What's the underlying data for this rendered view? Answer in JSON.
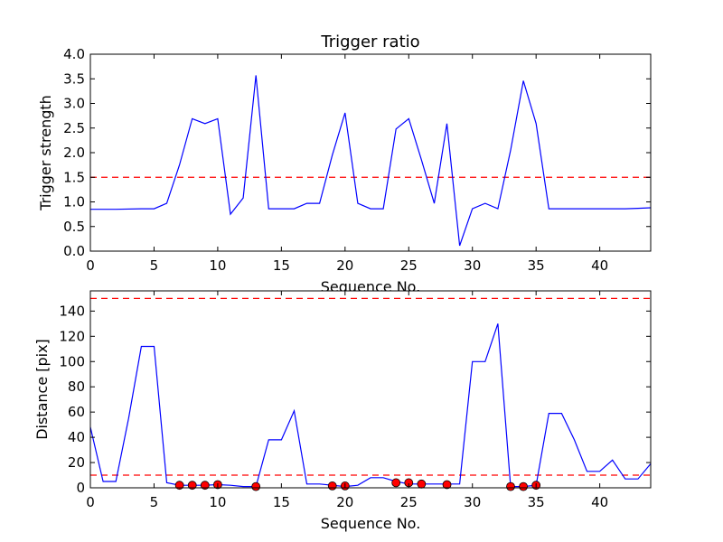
{
  "chart_data": [
    {
      "type": "line",
      "title": "Trigger ratio",
      "xlabel": "Sequence No.",
      "ylabel": "Trigger strength",
      "xlim": [
        0,
        44
      ],
      "ylim": [
        0,
        4
      ],
      "xticks": [
        0,
        5,
        10,
        15,
        20,
        25,
        30,
        35,
        40
      ],
      "yticks": [
        "0.0",
        "0.5",
        "1.0",
        "1.5",
        "2.0",
        "2.5",
        "3.0",
        "3.5",
        "4.0"
      ],
      "grid": false,
      "series": [
        {
          "color": "#0000ff",
          "points": [
            [
              0,
              0.85
            ],
            [
              2,
              0.85
            ],
            [
              4,
              0.86
            ],
            [
              5,
              0.86
            ],
            [
              6,
              0.97
            ],
            [
              7,
              1.75
            ],
            [
              8,
              2.69
            ],
            [
              9,
              2.59
            ],
            [
              10,
              2.69
            ],
            [
              11,
              0.75
            ],
            [
              12,
              1.08
            ],
            [
              13,
              3.57
            ],
            [
              14,
              0.86
            ],
            [
              15,
              0.86
            ],
            [
              16,
              0.86
            ],
            [
              17,
              0.97
            ],
            [
              18,
              0.97
            ],
            [
              19,
              1.95
            ],
            [
              20,
              2.81
            ],
            [
              21,
              0.97
            ],
            [
              22,
              0.86
            ],
            [
              23,
              0.86
            ],
            [
              24,
              2.48
            ],
            [
              25,
              2.69
            ],
            [
              26,
              1.85
            ],
            [
              27,
              0.97
            ],
            [
              28,
              2.59
            ],
            [
              29,
              0.11
            ],
            [
              30,
              0.86
            ],
            [
              31,
              0.97
            ],
            [
              32,
              0.86
            ],
            [
              33,
              2.05
            ],
            [
              34,
              3.46
            ],
            [
              35,
              2.59
            ],
            [
              36,
              0.86
            ],
            [
              37,
              0.86
            ],
            [
              38,
              0.86
            ],
            [
              39,
              0.86
            ],
            [
              40,
              0.86
            ],
            [
              41,
              0.86
            ],
            [
              42,
              0.86
            ],
            [
              43,
              0.87
            ],
            [
              44,
              0.88
            ]
          ]
        }
      ],
      "hlines": [
        {
          "y": 1.5,
          "color": "#ff0000",
          "style": "dashed"
        }
      ]
    },
    {
      "type": "line",
      "title": "",
      "xlabel": "Sequence No.",
      "ylabel": "Distance [pix]",
      "xlim": [
        0,
        44
      ],
      "ylim": [
        0,
        156
      ],
      "xticks": [
        0,
        5,
        10,
        15,
        20,
        25,
        30,
        35,
        40
      ],
      "yticks": [
        "0",
        "20",
        "40",
        "60",
        "80",
        "100",
        "120",
        "140"
      ],
      "grid": false,
      "series": [
        {
          "color": "#0000ff",
          "points": [
            [
              0,
              48
            ],
            [
              1,
              5
            ],
            [
              2,
              5
            ],
            [
              3,
              55
            ],
            [
              4,
              112
            ],
            [
              5,
              112
            ],
            [
              6,
              4
            ],
            [
              7,
              2
            ],
            [
              8,
              2
            ],
            [
              9,
              2
            ],
            [
              10,
              2.5
            ],
            [
              11,
              2
            ],
            [
              12,
              1
            ],
            [
              13,
              1
            ],
            [
              14,
              38
            ],
            [
              15,
              38
            ],
            [
              16,
              61
            ],
            [
              17,
              3
            ],
            [
              18,
              3
            ],
            [
              19,
              2
            ],
            [
              20,
              1
            ],
            [
              21,
              2
            ],
            [
              22,
              8
            ],
            [
              23,
              8
            ],
            [
              24,
              5
            ],
            [
              25,
              3
            ],
            [
              26,
              3
            ],
            [
              27,
              3
            ],
            [
              28,
              3
            ],
            [
              29,
              3
            ],
            [
              30,
              100
            ],
            [
              31,
              100
            ],
            [
              32,
              130
            ],
            [
              33,
              1
            ],
            [
              34,
              1
            ],
            [
              35,
              2
            ],
            [
              36,
              59
            ],
            [
              37,
              59
            ],
            [
              38,
              38
            ],
            [
              39,
              13
            ],
            [
              40,
              13
            ],
            [
              41,
              22
            ],
            [
              42,
              7
            ],
            [
              43,
              7
            ],
            [
              44,
              19
            ]
          ]
        },
        {
          "type": "scatter",
          "color": "#ff0000",
          "edgecolor": "#000000",
          "points": [
            [
              7,
              2
            ],
            [
              8,
              2
            ],
            [
              9,
              2
            ],
            [
              10,
              2.5
            ],
            [
              13,
              1
            ],
            [
              19,
              1.5
            ],
            [
              20,
              1.5
            ],
            [
              24,
              4
            ],
            [
              25,
              4
            ],
            [
              26,
              3
            ],
            [
              28,
              2.5
            ],
            [
              33,
              1
            ],
            [
              34,
              1
            ],
            [
              35,
              2
            ]
          ]
        }
      ],
      "hlines": [
        {
          "y": 150,
          "color": "#ff0000",
          "style": "dashed"
        },
        {
          "y": 10,
          "color": "#ff0000",
          "style": "dashed"
        }
      ]
    }
  ]
}
